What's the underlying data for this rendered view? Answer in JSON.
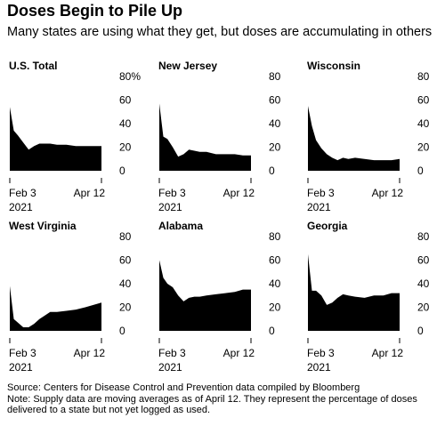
{
  "header": {
    "title": "Doses Begin to Pile Up",
    "subtitle": "Many states are using what they get, but doses are accumulating in others"
  },
  "footer": {
    "source": "Source: Centers for Disease Control and Prevention data compiled by Bloomberg",
    "note_line1": "Note: Supply data are moving averages as of April 12. They represent the percentage of doses",
    "note_line2": "delivered to a state but not yet logged as used."
  },
  "colors": {
    "fill": "#000000",
    "tick": "#000000",
    "background": "#ffffff"
  },
  "chart_data": [
    {
      "type": "area",
      "title": "U.S. Total",
      "x": [
        "2021-02-03",
        "2021-02-06",
        "2021-02-09",
        "2021-02-13",
        "2021-02-17",
        "2021-02-21",
        "2021-02-25",
        "2021-03-01",
        "2021-03-05",
        "2021-03-10",
        "2021-03-17",
        "2021-03-24",
        "2021-03-31",
        "2021-04-06",
        "2021-04-12"
      ],
      "values": [
        54,
        34,
        30,
        24,
        18,
        21,
        23,
        23,
        23,
        22,
        22,
        21,
        21,
        21,
        21
      ],
      "ylim": [
        0,
        80
      ],
      "yticks": [
        "80%",
        "60",
        "40",
        "20",
        "0"
      ],
      "xticks": [
        "Feb 3",
        "Apr 12"
      ],
      "xtick_year": "2021",
      "grid": false
    },
    {
      "type": "area",
      "title": "New Jersey",
      "x": [
        "2021-02-03",
        "2021-02-06",
        "2021-02-09",
        "2021-02-13",
        "2021-02-17",
        "2021-02-21",
        "2021-02-25",
        "2021-03-01",
        "2021-03-05",
        "2021-03-10",
        "2021-03-17",
        "2021-03-24",
        "2021-03-31",
        "2021-04-06",
        "2021-04-12"
      ],
      "values": [
        57,
        29,
        27,
        20,
        12,
        14,
        18,
        17,
        16,
        16,
        14,
        14,
        14,
        13,
        13
      ],
      "ylim": [
        0,
        80
      ],
      "yticks": [
        "80",
        "60",
        "40",
        "20",
        "0"
      ],
      "xticks": [
        "Feb 3",
        "Apr 12"
      ],
      "xtick_year": "2021",
      "grid": false
    },
    {
      "type": "area",
      "title": "Wisconsin",
      "x": [
        "2021-02-03",
        "2021-02-06",
        "2021-02-09",
        "2021-02-13",
        "2021-02-17",
        "2021-02-21",
        "2021-02-25",
        "2021-03-01",
        "2021-03-05",
        "2021-03-10",
        "2021-03-17",
        "2021-03-24",
        "2021-03-31",
        "2021-04-06",
        "2021-04-12"
      ],
      "values": [
        55,
        38,
        26,
        19,
        14,
        11,
        9,
        11,
        10,
        11,
        10,
        9,
        9,
        9,
        10
      ],
      "ylim": [
        0,
        80
      ],
      "yticks": [
        "80",
        "60",
        "40",
        "20",
        "0"
      ],
      "xticks": [
        "Feb 3",
        "Apr 12"
      ],
      "xtick_year": "2021",
      "grid": false
    },
    {
      "type": "area",
      "title": "West Virginia",
      "x": [
        "2021-02-03",
        "2021-02-06",
        "2021-02-09",
        "2021-02-13",
        "2021-02-17",
        "2021-02-21",
        "2021-02-25",
        "2021-03-01",
        "2021-03-05",
        "2021-03-10",
        "2021-03-17",
        "2021-03-24",
        "2021-03-31",
        "2021-04-06",
        "2021-04-12"
      ],
      "values": [
        38,
        10,
        7,
        3,
        3,
        6,
        10,
        13,
        16,
        16,
        17,
        18,
        20,
        22,
        24
      ],
      "ylim": [
        0,
        80
      ],
      "yticks": [
        "80",
        "60",
        "40",
        "20",
        "0"
      ],
      "xticks": [
        "Feb 3",
        "Apr 12"
      ],
      "xtick_year": "2021",
      "grid": false
    },
    {
      "type": "area",
      "title": "Alabama",
      "x": [
        "2021-02-03",
        "2021-02-06",
        "2021-02-09",
        "2021-02-13",
        "2021-02-17",
        "2021-02-21",
        "2021-02-25",
        "2021-03-01",
        "2021-03-05",
        "2021-03-10",
        "2021-03-17",
        "2021-03-24",
        "2021-03-31",
        "2021-04-06",
        "2021-04-12"
      ],
      "values": [
        60,
        45,
        40,
        37,
        30,
        25,
        28,
        29,
        29,
        30,
        31,
        32,
        33,
        35,
        35
      ],
      "ylim": [
        0,
        80
      ],
      "yticks": [
        "80",
        "60",
        "40",
        "20",
        "0"
      ],
      "xticks": [
        "Feb 3",
        "Apr 12"
      ],
      "xtick_year": "2021",
      "grid": false
    },
    {
      "type": "area",
      "title": "Georgia",
      "x": [
        "2021-02-03",
        "2021-02-06",
        "2021-02-09",
        "2021-02-13",
        "2021-02-17",
        "2021-02-21",
        "2021-02-25",
        "2021-03-01",
        "2021-03-05",
        "2021-03-10",
        "2021-03-17",
        "2021-03-24",
        "2021-03-31",
        "2021-04-06",
        "2021-04-12"
      ],
      "values": [
        65,
        34,
        34,
        30,
        22,
        24,
        28,
        31,
        30,
        29,
        28,
        30,
        30,
        32,
        32
      ],
      "ylim": [
        0,
        80
      ],
      "yticks": [
        "80",
        "60",
        "40",
        "20",
        "0"
      ],
      "xticks": [
        "Feb 3",
        "Apr 12"
      ],
      "xtick_year": "2021",
      "grid": false
    }
  ]
}
